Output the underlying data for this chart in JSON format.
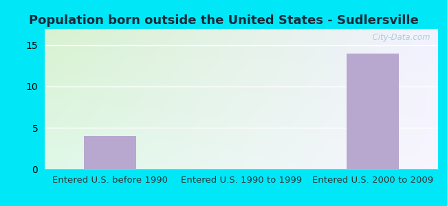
{
  "title": "Population born outside the United States - Sudlersville",
  "categories": [
    "Entered U.S. before 1990",
    "Entered U.S. 1990 to 1999",
    "Entered U.S. 2000 to 2009"
  ],
  "values": [
    4,
    0,
    14
  ],
  "bar_color": "#b8a8d0",
  "ylim": [
    0,
    17
  ],
  "yticks": [
    0,
    5,
    10,
    15
  ],
  "bg_color_top_left": "#d8f0d0",
  "bg_color_top_right": "#f0f0ff",
  "bg_color_bottom_left": "#c8ecc8",
  "bg_color_bottom_right": "#e8e8ff",
  "outer_bg": "#00e8f8",
  "title_fontsize": 13,
  "tick_fontsize": 10,
  "label_fontsize": 9.5,
  "title_color": "#1a2a3a",
  "watermark": "  City-Data.com",
  "watermark_color": "#a8c8d8"
}
